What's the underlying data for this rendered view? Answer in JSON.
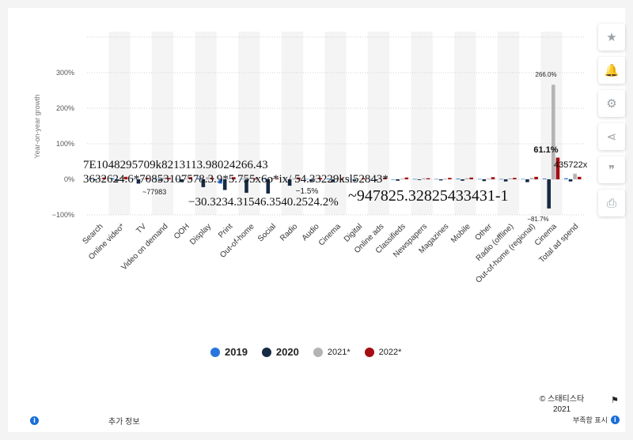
{
  "chart_data": {
    "type": "bar",
    "ylabel": "Year-on-year growth",
    "yticks": [
      "−100%",
      "0%",
      "100%",
      "200%",
      "300%"
    ],
    "ylim": [
      -100,
      400
    ],
    "grid": true,
    "legend_position": "bottom",
    "categories": [
      "Search",
      "Online video*",
      "TV",
      "Video on demand",
      "OOH",
      "Display",
      "Print",
      "Out-of-home",
      "Social",
      "Radio",
      "Audio",
      "Cinema",
      "Digital",
      "Online ads",
      "Classifieds",
      "Newspapers",
      "Magazines",
      "Mobile",
      "Other",
      "Radio (offline)",
      "Out-of-home (regional)",
      "Cinema",
      "Total ad spend"
    ],
    "series": [
      {
        "name": "2019",
        "color": "#2876dd",
        "values": [
          2,
          3,
          1,
          2,
          1,
          3,
          -12,
          1,
          2,
          1,
          1,
          2,
          1,
          1,
          0,
          1,
          1,
          2,
          1,
          1,
          1,
          2,
          3
        ]
      },
      {
        "name": "2020",
        "color": "#162a43",
        "values": [
          -3,
          -5,
          -12,
          -4,
          -8,
          -22,
          -30,
          -38,
          -40,
          -18,
          -6,
          -8,
          -5,
          -3,
          -4,
          -2,
          -3,
          -4,
          -5,
          -6,
          -8,
          -82,
          -6
        ]
      },
      {
        "name": "2021*",
        "color": "#b4b4b4",
        "values": [
          4,
          6,
          3,
          5,
          2,
          6,
          2,
          5,
          4,
          3,
          3,
          4,
          2,
          3,
          2,
          3,
          2,
          3,
          2,
          3,
          4,
          266,
          16
        ]
      },
      {
        "name": "2022*",
        "color": "#a40d12",
        "values": [
          5,
          7,
          4,
          4,
          6,
          4,
          6,
          3,
          2,
          5,
          4,
          3,
          3,
          4,
          5,
          3,
          4,
          5,
          6,
          4,
          7,
          61,
          7
        ]
      }
    ],
    "annotations": [
      "7E1048295709k8213113.98024266.43",
      "3632624.6*70853107578.3.9*5.755x6o*ix/ 54.33229ksl52843*",
      "~77983",
      "−30.3234.31546.3540.2524.2%",
      "~947825.32825433431-1",
      "266.0%",
      "61.1%",
      "435722x",
      "−81.7%",
      "−1.5%"
    ]
  },
  "legend": [
    {
      "label": "2019",
      "color": "#2876dd"
    },
    {
      "label": "2020",
      "color": "#162a43"
    },
    {
      "label": "2021*",
      "color": "#b4b4b4"
    },
    {
      "label": "2022*",
      "color": "#a40d12"
    }
  ],
  "sidebar": [
    "star-icon",
    "bell-icon",
    "gear-icon",
    "share-icon",
    "quote-icon",
    "print-icon"
  ],
  "footer": {
    "additional_info": "추가 정보",
    "credit_line1": "© 스태티스타",
    "credit_line2": "2021",
    "report": "부족함 표시"
  }
}
